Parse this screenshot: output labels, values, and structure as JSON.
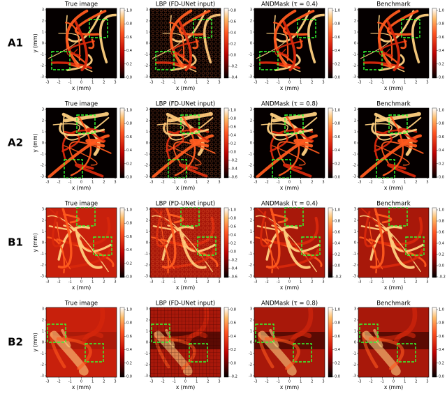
{
  "rows": [
    {
      "label": "A1",
      "panels": [
        {
          "title": "True image",
          "x_label": "x (mm)",
          "y_label": "y (mm)",
          "x_ticks": [
            -3,
            -2,
            -1,
            0,
            1,
            2,
            3
          ],
          "y_ticks": [
            -3,
            -2,
            -1,
            0,
            1,
            2,
            3
          ],
          "colorbar_ticks": [
            "0.0",
            "0.2",
            "0.4",
            "0.6",
            "0.8",
            "1.0"
          ]
        },
        {
          "title": "LBP (FD-UNet input)",
          "x_label": "x (mm)",
          "x_ticks": [
            -3,
            -2,
            -1,
            0,
            1,
            2,
            3
          ],
          "y_ticks": [
            -3,
            -2,
            -1,
            0,
            1,
            2,
            3
          ],
          "colorbar_ticks": [
            "-0.4",
            "-0.2",
            "0.0",
            "0.2",
            "0.4",
            "0.6",
            "0.8"
          ]
        },
        {
          "title": "ANDMask (τ = 0.4)",
          "x_label": "x (mm)",
          "x_ticks": [
            -3,
            -2,
            -1,
            0,
            1,
            2,
            3
          ],
          "y_ticks": [
            -3,
            -2,
            -1,
            0,
            1,
            2,
            3
          ],
          "colorbar_ticks": [
            "0.0",
            "0.2",
            "0.4",
            "0.6",
            "0.8",
            "1.0"
          ]
        },
        {
          "title": "Benchmark",
          "x_label": "x (mm)",
          "x_ticks": [
            -3,
            -2,
            -1,
            0,
            1,
            2,
            3
          ],
          "y_ticks": [
            -3,
            -2,
            -1,
            0,
            1,
            2,
            3
          ],
          "colorbar_ticks": [
            "0.0",
            "0.2",
            "0.4",
            "0.6",
            "0.8",
            "1.0"
          ]
        }
      ]
    },
    {
      "label": "A2",
      "panels": [
        {
          "title": "True image",
          "x_label": "x (mm)",
          "y_label": "y (mm)",
          "x_ticks": [
            -3,
            -2,
            -1,
            0,
            1,
            2,
            3
          ],
          "y_ticks": [
            -3,
            -2,
            -1,
            0,
            1,
            2,
            3
          ],
          "colorbar_ticks": [
            "0.0",
            "0.2",
            "0.4",
            "0.6",
            "0.8",
            "1.0"
          ]
        },
        {
          "title": "LBP (FD-UNet input)",
          "x_label": "x (mm)",
          "x_ticks": [
            -3,
            -2,
            -1,
            0,
            1,
            2,
            3
          ],
          "y_ticks": [
            -3,
            -2,
            -1,
            0,
            1,
            2,
            3
          ],
          "colorbar_ticks": [
            "-0.6",
            "-0.4",
            "-0.2",
            "0.0",
            "0.2",
            "0.4",
            "0.6",
            "0.8",
            "1.0"
          ]
        },
        {
          "title": "ANDMask (τ = 0.8)",
          "x_label": "x (mm)",
          "x_ticks": [
            -3,
            -2,
            -1,
            0,
            1,
            2,
            3
          ],
          "y_ticks": [
            -3,
            -2,
            -1,
            0,
            1,
            2,
            3
          ],
          "colorbar_ticks": [
            "0.0",
            "0.2",
            "0.4",
            "0.6",
            "0.8",
            "1.0"
          ]
        },
        {
          "title": "Benchmark",
          "x_label": "x (mm)",
          "x_ticks": [
            -3,
            -2,
            -1,
            0,
            1,
            2,
            3
          ],
          "y_ticks": [
            -3,
            -2,
            -1,
            0,
            1,
            2,
            3
          ],
          "colorbar_ticks": [
            "0.0",
            "0.2",
            "0.4",
            "0.6",
            "0.8",
            "1.0"
          ]
        }
      ]
    },
    {
      "label": "B1",
      "panels": [
        {
          "title": "True image",
          "x_label": "x (mm)",
          "y_label": "y (mm)",
          "x_ticks": [
            -3,
            -2,
            -1,
            0,
            1,
            2,
            3
          ],
          "y_ticks": [
            -3,
            -2,
            -1,
            0,
            1,
            2,
            3
          ],
          "colorbar_ticks": [
            "0.0",
            "0.2",
            "0.4",
            "0.6",
            "0.8",
            "1.0"
          ]
        },
        {
          "title": "LBP (FD-UNet input)",
          "x_label": "x (mm)",
          "x_ticks": [
            -3,
            -2,
            -1,
            0,
            1,
            2,
            3
          ],
          "y_ticks": [
            -3,
            -2,
            -1,
            0,
            1,
            2,
            3
          ],
          "colorbar_ticks": [
            "-0.6",
            "-0.4",
            "-0.2",
            "0.0",
            "0.2",
            "0.4",
            "0.6",
            "0.8",
            "1.0"
          ]
        },
        {
          "title": "ANDMask (τ = 0.4)",
          "x_label": "x (mm)",
          "x_ticks": [
            -3,
            -2,
            -1,
            0,
            1,
            2,
            3
          ],
          "y_ticks": [
            -3,
            -2,
            -1,
            0,
            1,
            2,
            3
          ],
          "colorbar_ticks": [
            "-0.2",
            "0.0",
            "0.2",
            "0.4",
            "0.6",
            "0.8",
            "1.0"
          ]
        },
        {
          "title": "Benchmark",
          "x_label": "x (mm)",
          "x_ticks": [
            -3,
            -2,
            -1,
            0,
            1,
            2,
            3
          ],
          "y_ticks": [
            -3,
            -2,
            -1,
            0,
            1,
            2,
            3
          ],
          "colorbar_ticks": [
            "-0.2",
            "0.0",
            "0.2",
            "0.4",
            "0.6",
            "0.8",
            "1.0"
          ]
        }
      ]
    },
    {
      "label": "B2",
      "panels": [
        {
          "title": "True image",
          "x_label": "x (mm)",
          "y_label": "y (mm)",
          "x_ticks": [
            -3,
            -2,
            -1,
            0,
            1,
            2,
            3
          ],
          "y_ticks": [
            -3,
            -2,
            -1,
            0,
            1,
            2,
            3
          ],
          "colorbar_ticks": [
            "0.0",
            "0.2",
            "0.4",
            "0.6",
            "0.8",
            "1.0"
          ]
        },
        {
          "title": "LBP (FD-UNet input)",
          "x_label": "x (mm)",
          "x_ticks": [
            -3,
            -2,
            -1,
            0,
            1,
            2,
            3
          ],
          "y_ticks": [
            -3,
            -2,
            -1,
            0,
            1,
            2,
            3
          ],
          "colorbar_ticks": [
            "-0.2",
            "0.0",
            "0.2",
            "0.4",
            "0.6",
            "0.8"
          ]
        },
        {
          "title": "ANDMask (τ = 0.8)",
          "x_label": "x (mm)",
          "x_ticks": [
            -3,
            -2,
            -1,
            0,
            1,
            2,
            3
          ],
          "y_ticks": [
            -3,
            -2,
            -1,
            0,
            1,
            2,
            3
          ],
          "colorbar_ticks": [
            "0.0",
            "0.2",
            "0.4",
            "0.6",
            "0.8",
            "1.0"
          ]
        },
        {
          "title": "Benchmark",
          "x_label": "x (mm)",
          "x_ticks": [
            -3,
            -2,
            -1,
            0,
            1,
            2,
            3
          ],
          "y_ticks": [
            -3,
            -2,
            -1,
            0,
            1,
            2,
            3
          ],
          "colorbar_ticks": [
            "0.0",
            "0.2",
            "0.4",
            "0.6",
            "0.8",
            "1.0"
          ]
        }
      ]
    }
  ]
}
